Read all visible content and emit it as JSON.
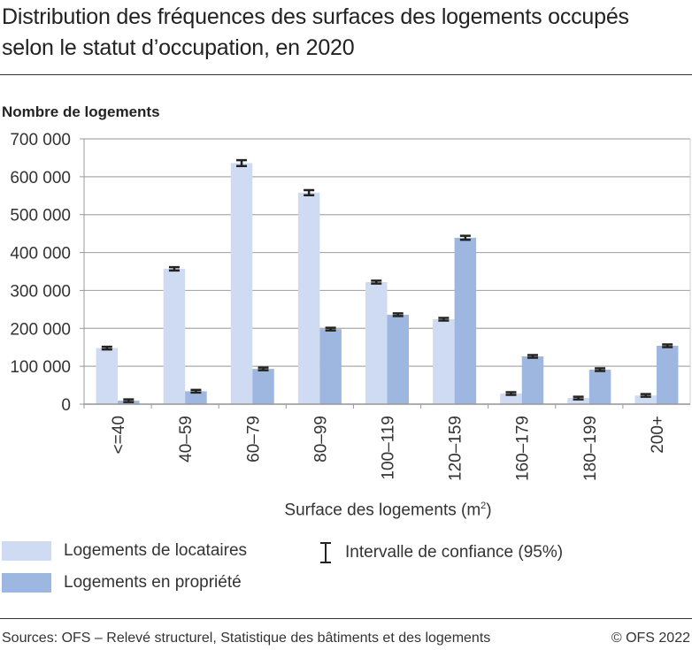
{
  "chart_data": {
    "type": "bar",
    "title": "Distribution des fréquences des surfaces des logements occupés selon le statut d’occupation, en 2020",
    "ylabel": "Nombre de logements",
    "xlabel": "Surface des logements (m",
    "xlabel_sup": "2",
    "xlabel_end": ")",
    "categories": [
      "<=40",
      "40–59",
      "60–79",
      "80–99",
      "100–119",
      "120–159",
      "160–179",
      "180–199",
      "200+"
    ],
    "series": [
      {
        "name": "Logements de locataires",
        "color": "#cfdbf2",
        "values": [
          148000,
          357000,
          636000,
          558000,
          322000,
          224000,
          28000,
          16000,
          23000
        ]
      },
      {
        "name": "Logements en propriété",
        "color": "#9db7e0",
        "values": [
          9000,
          34000,
          93000,
          198000,
          236000,
          439000,
          126000,
          91000,
          154000
        ]
      }
    ],
    "error_bar_label": "Intervalle de confiance (95%)",
    "ylim": [
      0,
      700000
    ],
    "yticks": [
      0,
      100000,
      200000,
      300000,
      400000,
      500000,
      600000,
      700000
    ],
    "ytick_labels": [
      "0",
      "100 000",
      "200 000",
      "300 000",
      "400 000",
      "500 000",
      "600 000",
      "700 000"
    ],
    "grid": true,
    "legend_placement": "bottom"
  },
  "footer": {
    "source": "Sources: OFS – Relevé structurel, Statistique des bâtiments et des logements",
    "copyright": "© OFS 2022"
  }
}
